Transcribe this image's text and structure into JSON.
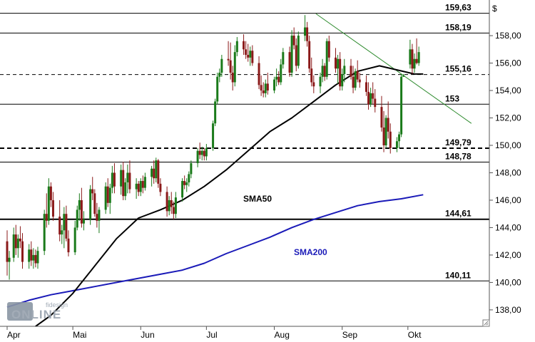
{
  "chart_data": {
    "type": "candlestick",
    "title": "",
    "ylabel": "$",
    "xlabel": "",
    "ylim": [
      136.8,
      160.6
    ],
    "y_ticks": [
      "138,00",
      "140,00",
      "142,00",
      "144,00",
      "146,00",
      "148,00",
      "150,00",
      "152,00",
      "154,00",
      "156,00",
      "158,00"
    ],
    "x_months": [
      {
        "label": "Apr",
        "day": 0
      },
      {
        "label": "Mai",
        "day": 30
      },
      {
        "label": "Jun",
        "day": 61
      },
      {
        "label": "Jul",
        "day": 91
      },
      {
        "label": "Aug",
        "day": 122
      },
      {
        "label": "Sep",
        "day": 153
      },
      {
        "label": "Okt",
        "day": 183
      }
    ],
    "levels": [
      {
        "value": 159.63,
        "label": "159,63",
        "style": "solid"
      },
      {
        "value": 158.19,
        "label": "158,19",
        "style": "solid"
      },
      {
        "value": 155.16,
        "label": "155,16",
        "style": "dashed"
      },
      {
        "value": 153.0,
        "label": "153",
        "style": "solid"
      },
      {
        "value": 149.79,
        "label": "149,79",
        "style": "dashed-bold"
      },
      {
        "value": 148.78,
        "label": "148,78",
        "style": "solid"
      },
      {
        "value": 144.61,
        "label": "144,61",
        "style": "solid-bold"
      },
      {
        "value": 140.11,
        "label": "140,11",
        "style": "solid"
      }
    ],
    "trendline": {
      "from": {
        "day": 141,
        "value": 159.6
      },
      "to": {
        "day": 212,
        "value": 151.6
      },
      "color": "#2e8b2e"
    },
    "sma50": {
      "label": "SMA50",
      "color": "#000000",
      "points": [
        [
          13,
          136.8
        ],
        [
          20,
          137.6
        ],
        [
          30,
          139.2
        ],
        [
          40,
          141.2
        ],
        [
          50,
          143.2
        ],
        [
          60,
          144.7
        ],
        [
          70,
          145.3
        ],
        [
          80,
          146.0
        ],
        [
          90,
          147.0
        ],
        [
          100,
          148.2
        ],
        [
          110,
          149.6
        ],
        [
          120,
          151.0
        ],
        [
          130,
          152.0
        ],
        [
          140,
          153.2
        ],
        [
          150,
          154.4
        ],
        [
          160,
          155.4
        ],
        [
          170,
          155.8
        ],
        [
          178,
          155.5
        ],
        [
          186,
          155.2
        ],
        [
          190,
          155.2
        ]
      ]
    },
    "sma200": {
      "label": "SMA200",
      "color": "#1a1ab8",
      "points": [
        [
          0,
          138.2
        ],
        [
          10,
          138.7
        ],
        [
          20,
          139.1
        ],
        [
          30,
          139.4
        ],
        [
          40,
          139.7
        ],
        [
          50,
          140.0
        ],
        [
          60,
          140.3
        ],
        [
          70,
          140.6
        ],
        [
          80,
          140.9
        ],
        [
          90,
          141.4
        ],
        [
          100,
          142.1
        ],
        [
          110,
          142.7
        ],
        [
          120,
          143.3
        ],
        [
          130,
          144.0
        ],
        [
          140,
          144.6
        ],
        [
          150,
          145.1
        ],
        [
          160,
          145.6
        ],
        [
          170,
          145.9
        ],
        [
          180,
          146.1
        ],
        [
          190,
          146.4
        ]
      ]
    },
    "candles": [
      [
        0,
        143.0,
        143.8,
        140.5,
        141.5
      ],
      [
        1,
        141.5,
        142.3,
        140.2,
        141.8
      ],
      [
        3,
        141.8,
        144.0,
        141.5,
        143.5
      ],
      [
        4,
        143.5,
        144.2,
        142.0,
        142.5
      ],
      [
        5,
        142.5,
        143.5,
        141.8,
        143.2
      ],
      [
        6,
        143.2,
        144.1,
        142.5,
        143.0
      ],
      [
        7,
        143.0,
        143.6,
        141.0,
        141.5
      ],
      [
        10,
        141.5,
        142.8,
        141.0,
        142.4
      ],
      [
        11,
        142.4,
        143.0,
        141.2,
        141.6
      ],
      [
        12,
        141.6,
        142.5,
        141.0,
        142.0
      ],
      [
        13,
        142.0,
        142.4,
        141.1,
        141.4
      ],
      [
        14,
        141.4,
        142.6,
        141.0,
        142.3
      ],
      [
        17,
        142.3,
        145.3,
        142.0,
        145.0
      ],
      [
        18,
        145.0,
        146.5,
        144.0,
        144.5
      ],
      [
        19,
        144.5,
        147.6,
        144.2,
        147.0
      ],
      [
        20,
        147.0,
        147.3,
        145.5,
        146.0
      ],
      [
        21,
        146.0,
        146.6,
        144.5,
        144.8
      ],
      [
        24,
        144.8,
        146.0,
        143.0,
        143.5
      ],
      [
        25,
        143.5,
        144.2,
        142.8,
        143.8
      ],
      [
        26,
        143.8,
        145.5,
        142.5,
        145.0
      ],
      [
        27,
        145.0,
        145.6,
        143.0,
        143.2
      ],
      [
        28,
        143.2,
        143.8,
        141.9,
        142.2
      ],
      [
        31,
        142.2,
        144.5,
        142.0,
        144.0
      ],
      [
        32,
        144.0,
        145.6,
        143.8,
        145.3
      ],
      [
        33,
        145.3,
        146.5,
        144.5,
        146.0
      ],
      [
        34,
        146.0,
        146.9,
        144.0,
        144.3
      ],
      [
        35,
        144.3,
        145.2,
        143.8,
        144.6
      ],
      [
        38,
        144.6,
        147.1,
        144.2,
        146.8
      ],
      [
        39,
        146.8,
        147.7,
        146.0,
        146.5
      ],
      [
        40,
        146.5,
        146.8,
        144.8,
        145.0
      ],
      [
        41,
        145.0,
        145.8,
        144.0,
        144.5
      ],
      [
        42,
        144.5,
        145.5,
        143.6,
        145.3
      ],
      [
        45,
        145.3,
        147.3,
        145.0,
        147.0
      ],
      [
        46,
        147.0,
        147.6,
        145.5,
        145.8
      ],
      [
        47,
        145.8,
        147.2,
        145.0,
        146.9
      ],
      [
        48,
        146.9,
        148.5,
        146.5,
        148.0
      ],
      [
        49,
        148.0,
        148.7,
        146.5,
        147.0
      ],
      [
        52,
        147.0,
        148.6,
        146.4,
        148.2
      ],
      [
        53,
        148.2,
        148.8,
        146.0,
        146.3
      ],
      [
        54,
        146.3,
        147.6,
        146.0,
        147.3
      ],
      [
        55,
        147.3,
        148.6,
        146.5,
        148.0
      ],
      [
        56,
        148.0,
        148.9,
        146.5,
        146.8
      ],
      [
        59,
        146.8,
        147.6,
        146.1,
        147.2
      ],
      [
        60,
        147.2,
        147.4,
        146.3,
        146.6
      ],
      [
        61,
        146.6,
        147.6,
        146.3,
        147.4
      ],
      [
        62,
        147.4,
        147.8,
        146.5,
        146.9
      ],
      [
        63,
        146.9,
        148.0,
        146.7,
        147.7
      ],
      [
        66,
        147.7,
        148.5,
        147.0,
        148.3
      ],
      [
        67,
        148.3,
        148.9,
        147.2,
        147.6
      ],
      [
        68,
        147.6,
        149.1,
        147.3,
        148.9
      ],
      [
        69,
        148.9,
        149.0,
        146.9,
        147.2
      ],
      [
        70,
        147.2,
        147.6,
        146.3,
        146.6
      ],
      [
        73,
        146.6,
        147.0,
        144.8,
        145.2
      ],
      [
        74,
        145.2,
        146.3,
        144.9,
        146.0
      ],
      [
        75,
        146.0,
        146.6,
        145.0,
        145.5
      ],
      [
        76,
        145.5,
        145.9,
        144.6,
        145.0
      ],
      [
        77,
        145.0,
        146.6,
        144.7,
        146.2
      ],
      [
        80,
        146.2,
        147.6,
        145.9,
        147.4
      ],
      [
        81,
        147.4,
        147.8,
        146.8,
        147.1
      ],
      [
        82,
        147.1,
        147.6,
        146.6,
        147.3
      ],
      [
        83,
        147.3,
        148.1,
        147.0,
        147.9
      ],
      [
        84,
        147.9,
        148.9,
        147.6,
        148.7
      ],
      [
        87,
        148.7,
        149.8,
        148.4,
        149.6
      ],
      [
        88,
        149.6,
        150.2,
        149.0,
        149.3
      ],
      [
        89,
        149.3,
        149.9,
        148.9,
        149.6
      ],
      [
        90,
        149.6,
        149.8,
        148.9,
        149.2
      ],
      [
        91,
        149.2,
        150.1,
        148.9,
        149.8
      ],
      [
        94,
        149.8,
        151.8,
        149.6,
        151.6
      ],
      [
        95,
        151.6,
        153.4,
        151.4,
        153.2
      ],
      [
        96,
        153.2,
        155.3,
        153.0,
        155.0
      ],
      [
        97,
        155.0,
        155.6,
        154.6,
        155.3
      ],
      [
        98,
        155.3,
        156.6,
        155.0,
        156.3
      ],
      [
        101,
        156.3,
        157.6,
        155.8,
        156.2
      ],
      [
        102,
        156.2,
        157.5,
        154.8,
        155.3
      ],
      [
        103,
        155.3,
        155.8,
        154.0,
        154.6
      ],
      [
        104,
        154.6,
        157.3,
        154.3,
        156.8
      ],
      [
        105,
        156.8,
        157.9,
        156.5,
        157.6
      ],
      [
        108,
        157.6,
        158.1,
        156.6,
        157.0
      ],
      [
        109,
        157.0,
        157.6,
        156.3,
        156.6
      ],
      [
        110,
        156.6,
        157.4,
        156.1,
        156.4
      ],
      [
        111,
        156.4,
        157.2,
        155.8,
        156.9
      ],
      [
        112,
        156.9,
        157.3,
        155.8,
        156.0
      ],
      [
        115,
        156.0,
        156.5,
        154.1,
        154.4
      ],
      [
        116,
        154.4,
        155.1,
        153.6,
        154.0
      ],
      [
        117,
        154.0,
        154.6,
        153.5,
        153.8
      ],
      [
        118,
        153.8,
        154.8,
        153.5,
        154.5
      ],
      [
        119,
        154.5,
        155.3,
        153.7,
        154.0
      ],
      [
        122,
        154.0,
        155.0,
        153.8,
        154.8
      ],
      [
        123,
        154.8,
        155.6,
        154.3,
        155.0
      ],
      [
        124,
        155.0,
        155.4,
        154.4,
        154.6
      ],
      [
        125,
        154.6,
        156.3,
        154.4,
        155.9
      ],
      [
        126,
        155.9,
        157.1,
        155.6,
        156.8
      ],
      [
        129,
        156.8,
        157.2,
        155.0,
        155.3
      ],
      [
        130,
        155.3,
        158.4,
        155.0,
        158.0
      ],
      [
        131,
        158.0,
        158.6,
        157.0,
        157.3
      ],
      [
        132,
        157.3,
        157.8,
        155.4,
        155.8
      ],
      [
        133,
        155.8,
        158.3,
        155.6,
        158.0
      ],
      [
        136,
        158.0,
        159.5,
        157.6,
        158.6
      ],
      [
        137,
        158.6,
        159.0,
        157.2,
        157.6
      ],
      [
        138,
        157.6,
        158.0,
        155.3,
        155.6
      ],
      [
        139,
        155.6,
        156.4,
        154.3,
        154.6
      ],
      [
        140,
        154.6,
        155.1,
        153.8,
        154.3
      ],
      [
        143,
        154.3,
        155.3,
        153.8,
        155.0
      ],
      [
        144,
        155.0,
        156.3,
        154.6,
        155.8
      ],
      [
        145,
        155.8,
        156.0,
        154.7,
        155.0
      ],
      [
        146,
        155.0,
        157.8,
        154.8,
        157.6
      ],
      [
        147,
        157.6,
        158.0,
        156.1,
        156.4
      ],
      [
        150,
        156.4,
        157.1,
        155.3,
        155.6
      ],
      [
        151,
        155.6,
        156.6,
        154.5,
        156.3
      ],
      [
        152,
        156.3,
        156.8,
        154.0,
        154.3
      ],
      [
        153,
        154.3,
        155.6,
        154.0,
        155.2
      ],
      [
        154,
        155.2,
        156.3,
        154.6,
        155.8
      ],
      [
        157,
        155.8,
        156.3,
        154.8,
        155.0
      ],
      [
        158,
        155.0,
        155.8,
        153.8,
        154.2
      ],
      [
        159,
        154.2,
        155.6,
        154.0,
        155.4
      ],
      [
        160,
        155.4,
        156.2,
        154.6,
        154.8
      ],
      [
        161,
        154.8,
        155.3,
        154.2,
        154.6
      ],
      [
        164,
        154.6,
        155.1,
        153.6,
        153.9
      ],
      [
        165,
        153.9,
        154.6,
        152.6,
        153.0
      ],
      [
        166,
        153.0,
        154.2,
        152.8,
        153.8
      ],
      [
        167,
        153.8,
        154.6,
        153.0,
        153.4
      ],
      [
        168,
        153.4,
        154.1,
        152.4,
        152.8
      ],
      [
        171,
        152.8,
        153.6,
        151.0,
        151.3
      ],
      [
        172,
        151.3,
        152.5,
        149.5,
        150.0
      ],
      [
        173,
        150.0,
        152.2,
        149.8,
        152.0
      ],
      [
        174,
        152.0,
        153.2,
        150.5,
        151.0
      ],
      [
        175,
        151.0,
        151.6,
        149.4,
        149.8
      ],
      [
        178,
        149.8,
        150.6,
        149.5,
        150.3
      ],
      [
        179,
        150.3,
        151.0,
        149.8,
        150.8
      ],
      [
        180,
        150.8,
        155.2,
        150.6,
        155.0
      ],
      [
        181,
        155.0,
        155.2,
        155.0,
        155.1
      ],
      [
        184,
        155.9,
        157.7,
        155.6,
        157.0
      ],
      [
        185,
        157.0,
        157.4,
        155.2,
        155.6
      ],
      [
        186,
        155.6,
        156.7,
        155.3,
        156.3
      ],
      [
        187,
        156.3,
        157.8,
        155.9,
        156.0
      ],
      [
        188,
        156.0,
        157.2,
        155.8,
        156.8
      ]
    ]
  },
  "annotations": {
    "sma50_label": "SMA50",
    "sma200_label": "SMA200"
  },
  "watermark": {
    "top": "fidesign",
    "main": "ONLINE"
  },
  "colors": {
    "up_candle": "#1a7a1a",
    "down_candle": "#8b1a1a",
    "sma50": "#000000",
    "sma200": "#1a1ab8",
    "trendline": "#2e8b2e"
  },
  "icons": {
    "corner": "resize-corner-icon"
  }
}
